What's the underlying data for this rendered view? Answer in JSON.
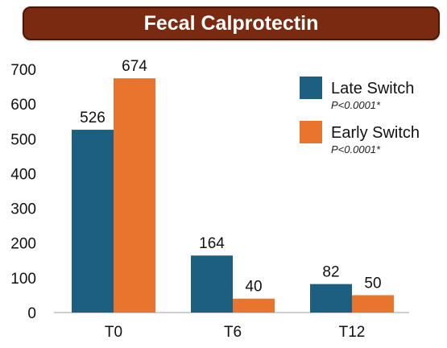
{
  "title": "Fecal Calprotectin",
  "colors": {
    "title_bg": "#7a2a10",
    "late": "#1d5f80",
    "early": "#e8742e",
    "axis": "#bfbfbf"
  },
  "chart_data": {
    "type": "bar",
    "categories": [
      "T0",
      "T6",
      "T12"
    ],
    "series": [
      {
        "name": "Late Switch",
        "note": "P<0.0001*",
        "values": [
          526,
          164,
          82
        ]
      },
      {
        "name": "Early Switch",
        "note": "P<0.0001*",
        "values": [
          674,
          40,
          50
        ]
      }
    ],
    "ylim": [
      0,
      700
    ],
    "yticks": [
      0,
      100,
      200,
      300,
      400,
      500,
      600,
      700
    ],
    "grid": false,
    "legend": "top-right"
  }
}
